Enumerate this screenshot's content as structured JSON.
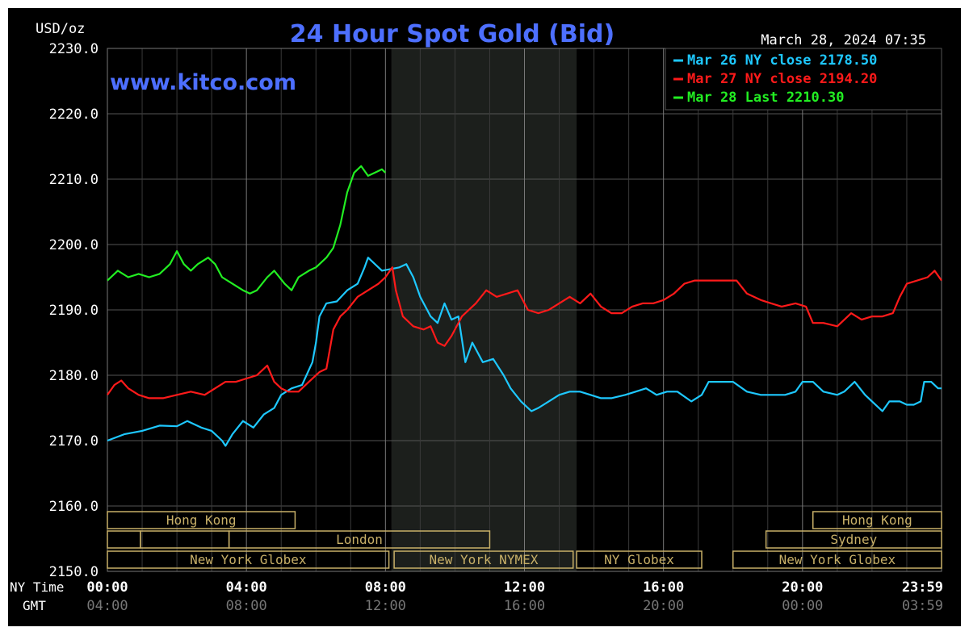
{
  "chart_data": {
    "type": "line",
    "title": "24 Hour Spot Gold (Bid)",
    "unit_label": "USD/oz",
    "brand": "www.kitco.com",
    "timestamp": "March 28, 2024 07:35",
    "ylim": [
      2150,
      2230
    ],
    "y_ticks": [
      "2230.0",
      "2220.0",
      "2210.0",
      "2200.0",
      "2190.0",
      "2180.0",
      "2170.0",
      "2160.0",
      "2150.0"
    ],
    "x_axis_ny_label": "NY Time",
    "x_axis_gmt_label": "GMT",
    "x_ticks_ny": [
      "00:00",
      "04:00",
      "08:00",
      "12:00",
      "16:00",
      "20:00",
      "23:59"
    ],
    "x_ticks_gmt": [
      "04:00",
      "08:00",
      "12:00",
      "16:00",
      "20:00",
      "00:00",
      "03:59"
    ],
    "xlim_hours": [
      0,
      24
    ],
    "grid": true,
    "legend_position": "top-right",
    "highlight_band_hours": [
      8.17,
      13.5
    ],
    "colors": {
      "background": "#000000",
      "plot_bg": "#000000",
      "band": "#1c1f1c",
      "grid": "#555555",
      "axis_text": "#ffffff",
      "title": "#4d6fff",
      "brand": "#4d6fff",
      "session": "#c8b068"
    },
    "series": [
      {
        "name": "Mar 26 NY close 2178.50",
        "color": "#1ec8ff",
        "points": [
          [
            0,
            2170
          ],
          [
            0.5,
            2171
          ],
          [
            1,
            2171.5
          ],
          [
            1.5,
            2172.3
          ],
          [
            2,
            2172.2
          ],
          [
            2.3,
            2173
          ],
          [
            2.7,
            2172
          ],
          [
            3,
            2171.5
          ],
          [
            3.3,
            2170
          ],
          [
            3.4,
            2169.2
          ],
          [
            3.6,
            2171
          ],
          [
            3.9,
            2173
          ],
          [
            4.2,
            2172
          ],
          [
            4.5,
            2174
          ],
          [
            4.8,
            2175
          ],
          [
            5,
            2177
          ],
          [
            5.3,
            2178
          ],
          [
            5.6,
            2178.5
          ],
          [
            5.9,
            2182
          ],
          [
            6.0,
            2185
          ],
          [
            6.1,
            2189
          ],
          [
            6.3,
            2191
          ],
          [
            6.6,
            2191.3
          ],
          [
            6.9,
            2193
          ],
          [
            7.2,
            2194
          ],
          [
            7.4,
            2196.5
          ],
          [
            7.5,
            2198
          ],
          [
            7.7,
            2197
          ],
          [
            7.9,
            2196
          ],
          [
            8.1,
            2196.2
          ],
          [
            8.4,
            2196.5
          ],
          [
            8.6,
            2197
          ],
          [
            8.8,
            2195
          ],
          [
            9,
            2192
          ],
          [
            9.3,
            2189
          ],
          [
            9.5,
            2188
          ],
          [
            9.7,
            2191
          ],
          [
            9.9,
            2188.5
          ],
          [
            10.1,
            2189
          ],
          [
            10.3,
            2182
          ],
          [
            10.5,
            2185
          ],
          [
            10.8,
            2182
          ],
          [
            11.1,
            2182.5
          ],
          [
            11.4,
            2180
          ],
          [
            11.6,
            2178
          ],
          [
            11.9,
            2176
          ],
          [
            12.2,
            2174.5
          ],
          [
            12.4,
            2175
          ],
          [
            12.7,
            2176
          ],
          [
            13,
            2177
          ],
          [
            13.3,
            2177.5
          ],
          [
            13.6,
            2177.5
          ],
          [
            13.9,
            2177
          ],
          [
            14.2,
            2176.5
          ],
          [
            14.5,
            2176.5
          ],
          [
            14.9,
            2177
          ],
          [
            15.2,
            2177.5
          ],
          [
            15.5,
            2178
          ],
          [
            15.8,
            2177
          ],
          [
            16.1,
            2177.5
          ],
          [
            16.4,
            2177.5
          ],
          [
            16.8,
            2176
          ],
          [
            17.1,
            2177
          ],
          [
            17.3,
            2179
          ],
          [
            17.7,
            2179
          ],
          [
            18,
            2179
          ],
          [
            18.4,
            2177.5
          ],
          [
            18.8,
            2177
          ],
          [
            19.2,
            2177
          ],
          [
            19.5,
            2177
          ],
          [
            19.8,
            2177.5
          ],
          [
            20,
            2179
          ],
          [
            20.3,
            2179
          ],
          [
            20.6,
            2177.5
          ],
          [
            21,
            2177
          ],
          [
            21.2,
            2177.5
          ],
          [
            21.5,
            2179
          ],
          [
            21.8,
            2177
          ],
          [
            22,
            2176
          ],
          [
            22.3,
            2174.5
          ],
          [
            22.5,
            2176
          ],
          [
            22.8,
            2176
          ],
          [
            23,
            2175.5
          ],
          [
            23.2,
            2175.5
          ],
          [
            23.4,
            2176
          ],
          [
            23.5,
            2179
          ],
          [
            23.7,
            2179
          ],
          [
            23.9,
            2178
          ],
          [
            24,
            2178
          ]
        ]
      },
      {
        "name": "Mar 27 NY close 2194.20",
        "color": "#ff1a1a",
        "points": [
          [
            0,
            2177
          ],
          [
            0.2,
            2178.5
          ],
          [
            0.4,
            2179.2
          ],
          [
            0.6,
            2178
          ],
          [
            0.9,
            2177
          ],
          [
            1.2,
            2176.5
          ],
          [
            1.6,
            2176.5
          ],
          [
            2,
            2177
          ],
          [
            2.4,
            2177.5
          ],
          [
            2.8,
            2177
          ],
          [
            3.1,
            2178
          ],
          [
            3.4,
            2179
          ],
          [
            3.7,
            2179
          ],
          [
            4,
            2179.5
          ],
          [
            4.3,
            2180
          ],
          [
            4.6,
            2181.5
          ],
          [
            4.8,
            2179
          ],
          [
            5.0,
            2178
          ],
          [
            5.2,
            2177.5
          ],
          [
            5.5,
            2177.5
          ],
          [
            5.8,
            2179
          ],
          [
            6.1,
            2180.5
          ],
          [
            6.3,
            2181
          ],
          [
            6.5,
            2187
          ],
          [
            6.7,
            2189
          ],
          [
            6.9,
            2190
          ],
          [
            7.2,
            2192
          ],
          [
            7.5,
            2193
          ],
          [
            7.8,
            2194
          ],
          [
            8.0,
            2195
          ],
          [
            8.2,
            2196.5
          ],
          [
            8.3,
            2193
          ],
          [
            8.5,
            2189
          ],
          [
            8.8,
            2187.5
          ],
          [
            9.1,
            2187
          ],
          [
            9.3,
            2187.5
          ],
          [
            9.5,
            2185
          ],
          [
            9.7,
            2184.5
          ],
          [
            9.9,
            2186
          ],
          [
            10.2,
            2189
          ],
          [
            10.4,
            2190
          ],
          [
            10.6,
            2191
          ],
          [
            10.9,
            2193
          ],
          [
            11.2,
            2192
          ],
          [
            11.5,
            2192.5
          ],
          [
            11.8,
            2193
          ],
          [
            12.1,
            2190
          ],
          [
            12.4,
            2189.5
          ],
          [
            12.7,
            2190
          ],
          [
            13,
            2191
          ],
          [
            13.3,
            2192
          ],
          [
            13.6,
            2191
          ],
          [
            13.9,
            2192.5
          ],
          [
            14.2,
            2190.5
          ],
          [
            14.5,
            2189.5
          ],
          [
            14.8,
            2189.5
          ],
          [
            15.1,
            2190.5
          ],
          [
            15.4,
            2191
          ],
          [
            15.7,
            2191
          ],
          [
            16,
            2191.5
          ],
          [
            16.3,
            2192.5
          ],
          [
            16.6,
            2194
          ],
          [
            16.9,
            2194.5
          ],
          [
            17.3,
            2194.5
          ],
          [
            17.7,
            2194.5
          ],
          [
            18.1,
            2194.5
          ],
          [
            18.4,
            2192.5
          ],
          [
            18.8,
            2191.5
          ],
          [
            19.1,
            2191
          ],
          [
            19.4,
            2190.5
          ],
          [
            19.8,
            2191
          ],
          [
            20.1,
            2190.5
          ],
          [
            20.3,
            2188
          ],
          [
            20.6,
            2188
          ],
          [
            21,
            2187.5
          ],
          [
            21.4,
            2189.5
          ],
          [
            21.7,
            2188.5
          ],
          [
            22,
            2189
          ],
          [
            22.3,
            2189
          ],
          [
            22.6,
            2189.5
          ],
          [
            22.8,
            2192
          ],
          [
            23,
            2194
          ],
          [
            23.3,
            2194.5
          ],
          [
            23.6,
            2195
          ],
          [
            23.8,
            2196
          ],
          [
            24,
            2194.5
          ]
        ]
      },
      {
        "name": "Mar 28 Last 2210.30",
        "color": "#22ee22",
        "points": [
          [
            0,
            2194.5
          ],
          [
            0.3,
            2196
          ],
          [
            0.6,
            2195
          ],
          [
            0.9,
            2195.5
          ],
          [
            1.2,
            2195
          ],
          [
            1.5,
            2195.5
          ],
          [
            1.8,
            2197
          ],
          [
            2,
            2199
          ],
          [
            2.2,
            2197
          ],
          [
            2.4,
            2196
          ],
          [
            2.6,
            2197
          ],
          [
            2.9,
            2198
          ],
          [
            3.1,
            2197
          ],
          [
            3.3,
            2195
          ],
          [
            3.6,
            2194
          ],
          [
            3.9,
            2193
          ],
          [
            4.1,
            2192.5
          ],
          [
            4.3,
            2193
          ],
          [
            4.6,
            2195
          ],
          [
            4.8,
            2196
          ],
          [
            5.1,
            2194
          ],
          [
            5.3,
            2193
          ],
          [
            5.5,
            2195
          ],
          [
            5.8,
            2196
          ],
          [
            6.0,
            2196.5
          ],
          [
            6.3,
            2198
          ],
          [
            6.5,
            2199.5
          ],
          [
            6.7,
            2203
          ],
          [
            6.9,
            2208
          ],
          [
            7.1,
            2211
          ],
          [
            7.3,
            2212
          ],
          [
            7.5,
            2210.5
          ],
          [
            7.7,
            2211
          ],
          [
            7.9,
            2211.5
          ],
          [
            8.0,
            2211
          ]
        ]
      }
    ],
    "sessions": [
      {
        "label": "Hong Kong",
        "row": 0,
        "start": 0,
        "end": 5.4
      },
      {
        "label": "",
        "row": 1,
        "start": 0,
        "end": 0.95
      },
      {
        "label": "",
        "row": 1,
        "start": 0.95,
        "end": 3.5
      },
      {
        "label": "London",
        "row": 1,
        "start": 3.5,
        "end": 11.0
      },
      {
        "label": "New York Globex",
        "row": 2,
        "start": 0,
        "end": 8.1
      },
      {
        "label": "New York NYMEX",
        "row": 2,
        "start": 8.25,
        "end": 13.4
      },
      {
        "label": "NY Globex",
        "row": 2,
        "start": 13.5,
        "end": 17.1
      },
      {
        "label": "Hong Kong",
        "row": 0,
        "start": 20.3,
        "end": 24.5
      },
      {
        "label": "Sydney",
        "row": 1,
        "start": 18.95,
        "end": 24.5
      },
      {
        "label": "New York Globex",
        "row": 2,
        "start": 18.0,
        "end": 24.5
      }
    ]
  }
}
